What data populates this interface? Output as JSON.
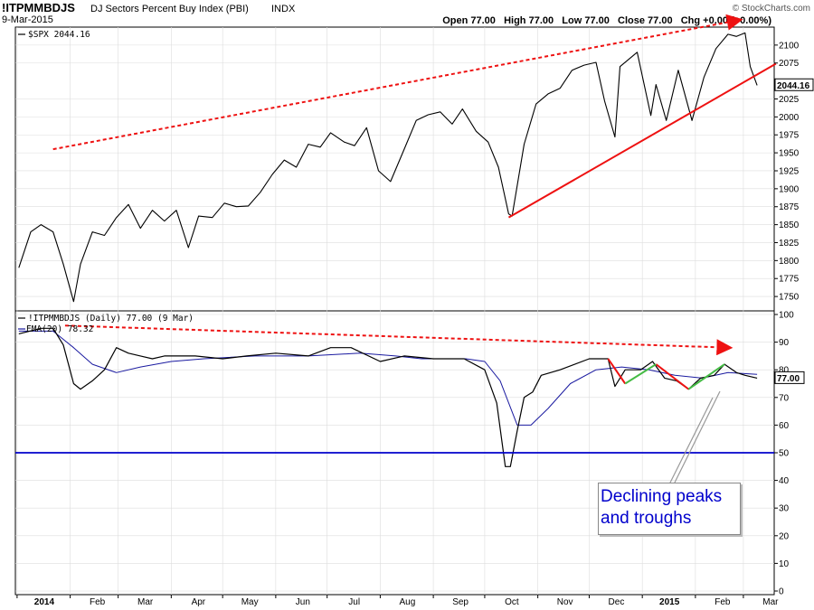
{
  "header": {
    "symbol": "!ITPMMBDJS",
    "name": "DJ Sectors Percent Buy Index (PBI)",
    "exchange": "INDX",
    "date": "9-Mar-2015",
    "watermark": "© StockCharts.com",
    "ohlc": "Open 77.00   High 77.00   Low 77.00   Close 77.00   Chg +0.00 (+0.00%)"
  },
  "annotation": {
    "line1": "Declining peaks",
    "line2": "and troughs"
  },
  "colors": {
    "price": "#000000",
    "ema": "#1a1aa0",
    "trend": "#ee1111",
    "green": "#44bb44",
    "level50": "#0000cc"
  },
  "chart_data": [
    {
      "type": "line",
      "legend": "$SPX 2044.16",
      "last_value_label": "2044.16",
      "ylim": [
        1730,
        2125
      ],
      "y_ticks": [
        1750,
        1775,
        1800,
        1825,
        1850,
        1875,
        1900,
        1925,
        1950,
        1975,
        2000,
        2025,
        2075,
        2100
      ],
      "x_labels": [
        "2014",
        "Feb",
        "Mar",
        "Apr",
        "May",
        "Jun",
        "Jul",
        "Aug",
        "Sep",
        "Oct",
        "Nov",
        "Dec",
        "2015",
        "Feb",
        "Mar"
      ],
      "series": [
        {
          "x": [
            "2014-01-02",
            "2014-01-09",
            "2014-01-15",
            "2014-01-22",
            "2014-01-28",
            "2014-02-03",
            "2014-02-07",
            "2014-02-14",
            "2014-02-21",
            "2014-02-28",
            "2014-03-07",
            "2014-03-14",
            "2014-03-21",
            "2014-03-28",
            "2014-04-04",
            "2014-04-11",
            "2014-04-17",
            "2014-04-25",
            "2014-05-02",
            "2014-05-09",
            "2014-05-16",
            "2014-05-23",
            "2014-05-30",
            "2014-06-06",
            "2014-06-13",
            "2014-06-20",
            "2014-06-27",
            "2014-07-03",
            "2014-07-11",
            "2014-07-17",
            "2014-07-24",
            "2014-07-31",
            "2014-08-07",
            "2014-08-15",
            "2014-08-22",
            "2014-08-29",
            "2014-09-05",
            "2014-09-12",
            "2014-09-18",
            "2014-09-26",
            "2014-10-03",
            "2014-10-09",
            "2014-10-15",
            "2014-10-17",
            "2014-10-24",
            "2014-10-31",
            "2014-11-07",
            "2014-11-14",
            "2014-11-21",
            "2014-11-28",
            "2014-12-05",
            "2014-12-10",
            "2014-12-16",
            "2014-12-19",
            "2014-12-29",
            "2015-01-06",
            "2015-01-09",
            "2015-01-15",
            "2015-01-22",
            "2015-01-30",
            "2015-02-06",
            "2015-02-13",
            "2015-02-20",
            "2015-02-25",
            "2015-03-02",
            "2015-03-05",
            "2015-03-09"
          ],
          "y": [
            1790,
            1840,
            1850,
            1840,
            1795,
            1743,
            1795,
            1840,
            1835,
            1860,
            1878,
            1845,
            1870,
            1855,
            1870,
            1818,
            1862,
            1860,
            1880,
            1875,
            1876,
            1895,
            1920,
            1940,
            1930,
            1962,
            1958,
            1978,
            1965,
            1960,
            1985,
            1925,
            1910,
            1955,
            1995,
            2003,
            2007,
            1990,
            2011,
            1980,
            1965,
            1930,
            1865,
            1862,
            1962,
            2018,
            2032,
            2040,
            2065,
            2072,
            2076,
            2022,
            1972,
            2070,
            2090,
            2002,
            2045,
            1995,
            2065,
            1995,
            2055,
            2095,
            2115,
            2112,
            2117,
            2070,
            2044
          ]
        }
      ],
      "trend_lines": [
        {
          "style": "dashed",
          "from": [
            "2014-01-22",
            1955
          ],
          "to": [
            "2015-02-27",
            2135
          ]
        },
        {
          "style": "solid",
          "from": [
            "2014-10-15",
            1860
          ],
          "to": [
            "2015-03-20",
            2074
          ]
        }
      ]
    },
    {
      "type": "line",
      "legend": "!ITPMMBDJS (Daily) 77.00 (9 Mar)",
      "ema_legend": "EMA(20) 78.32",
      "last_value_label": "77.00",
      "ylim": [
        0,
        100
      ],
      "y_ticks": [
        0,
        10,
        20,
        30,
        40,
        50,
        60,
        70,
        80,
        90,
        100
      ],
      "horizontal_line": 50,
      "series": [
        {
          "x": [
            "2014-01-02",
            "2014-01-15",
            "2014-01-22",
            "2014-01-28",
            "2014-02-03",
            "2014-02-07",
            "2014-02-14",
            "2014-02-21",
            "2014-02-28",
            "2014-03-07",
            "2014-03-14",
            "2014-03-21",
            "2014-03-28",
            "2014-04-15",
            "2014-05-01",
            "2014-05-15",
            "2014-06-01",
            "2014-06-20",
            "2014-07-03",
            "2014-07-15",
            "2014-08-01",
            "2014-08-15",
            "2014-09-01",
            "2014-09-19",
            "2014-10-01",
            "2014-10-08",
            "2014-10-13",
            "2014-10-16",
            "2014-10-20",
            "2014-10-24",
            "2014-10-29",
            "2014-11-03",
            "2014-11-14",
            "2014-12-01",
            "2014-12-12",
            "2014-12-16",
            "2014-12-22",
            "2014-12-31",
            "2015-01-07",
            "2015-01-14",
            "2015-01-21",
            "2015-01-28",
            "2015-02-04",
            "2015-02-12",
            "2015-02-18",
            "2015-02-25",
            "2015-03-02",
            "2015-03-09"
          ],
          "y": [
            93,
            95,
            95,
            89,
            75,
            73,
            76,
            80,
            88,
            86,
            85,
            84,
            85,
            85,
            84,
            85,
            86,
            85,
            88,
            88,
            83,
            85,
            84,
            84,
            80,
            68,
            45,
            45,
            58,
            70,
            72,
            78,
            80,
            84,
            84,
            74,
            80,
            80,
            83,
            77,
            76,
            73,
            77,
            78,
            82,
            79,
            78,
            77
          ]
        },
        {
          "x": [
            "2014-01-02",
            "2014-01-22",
            "2014-02-03",
            "2014-02-14",
            "2014-02-28",
            "2014-03-14",
            "2014-04-01",
            "2014-04-20",
            "2014-05-20",
            "2014-06-20",
            "2014-07-20",
            "2014-08-10",
            "2014-08-25",
            "2014-09-20",
            "2014-10-01",
            "2014-10-10",
            "2014-10-20",
            "2014-10-28",
            "2014-11-07",
            "2014-11-20",
            "2014-12-05",
            "2014-12-20",
            "2015-01-05",
            "2015-01-20",
            "2015-02-05",
            "2015-02-20",
            "2015-03-09"
          ],
          "y": [
            94,
            94,
            88,
            82,
            79,
            81,
            83,
            84,
            85,
            85,
            86,
            85,
            84,
            84,
            83,
            76,
            60,
            60,
            66,
            75,
            80,
            81,
            80,
            78,
            77,
            79,
            78.32
          ]
        }
      ],
      "trend_lines": [
        {
          "style": "dashed",
          "from": [
            "2014-01-29",
            96
          ],
          "to": [
            "2015-02-21",
            88
          ]
        },
        {
          "style": "solid",
          "from": [
            "2014-12-12",
            84
          ],
          "to": [
            "2014-12-22",
            75
          ]
        },
        {
          "style": "solid",
          "from": [
            "2015-01-09",
            82
          ],
          "to": [
            "2015-01-28",
            73
          ]
        },
        {
          "style": "solid-green",
          "from": [
            "2014-12-22",
            75
          ],
          "to": [
            "2015-01-09",
            82
          ]
        },
        {
          "style": "solid-green",
          "from": [
            "2015-01-28",
            73
          ],
          "to": [
            "2015-02-18",
            82
          ]
        }
      ]
    }
  ]
}
